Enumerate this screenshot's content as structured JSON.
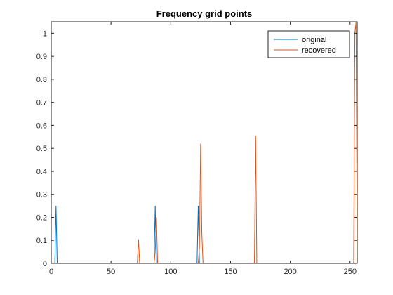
{
  "chart_data": {
    "type": "line",
    "title": "Frequency grid points",
    "xlabel": "",
    "ylabel": "",
    "xlim": [
      0,
      256
    ],
    "ylim": [
      0,
      1.05
    ],
    "grid": false,
    "legend_position": "top-right",
    "xticks": [
      0,
      50,
      100,
      150,
      200,
      250
    ],
    "yticks": [
      0,
      0.1,
      0.2,
      0.3,
      0.4,
      0.5,
      0.6,
      0.7,
      0.8,
      0.9,
      1
    ],
    "series": [
      {
        "name": "original",
        "color": "#0072BD",
        "x": [
          1,
          3,
          4,
          5,
          85,
          86,
          87,
          88,
          121,
          122,
          123,
          124,
          254,
          255
        ],
        "y": [
          0,
          0,
          0.25,
          0,
          0,
          0,
          0.25,
          0,
          0,
          0,
          0.25,
          0,
          0,
          0
        ]
      },
      {
        "name": "recovered",
        "color": "#D95319",
        "x": [
          1,
          72,
          73,
          74,
          86,
          87,
          88,
          89,
          123,
          124,
          125,
          126,
          127,
          169,
          170,
          171,
          172,
          252,
          253,
          254,
          255,
          256
        ],
        "y": [
          0,
          0,
          0.105,
          0,
          0,
          0.05,
          0.2,
          0,
          0,
          0.07,
          0.52,
          0.13,
          0,
          0,
          0,
          0.555,
          0,
          0,
          0,
          1.0,
          1.05,
          0
        ]
      }
    ]
  }
}
